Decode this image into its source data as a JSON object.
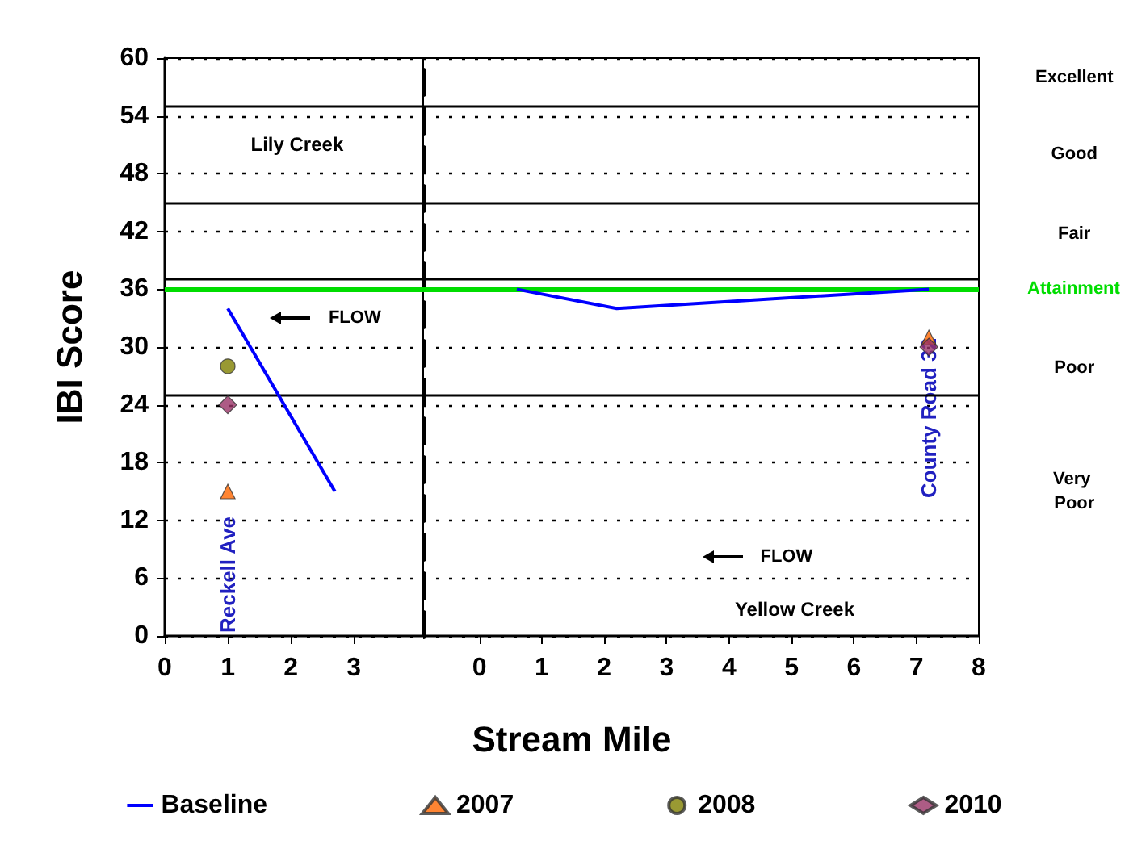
{
  "chart_data": [
    {
      "type": "line",
      "ylabel": "IBI Score",
      "xlabel": "Stream Mile",
      "xlim": [
        0,
        4.1
      ],
      "xticks": [
        0,
        1,
        2,
        3
      ],
      "ylim": [
        0,
        60
      ],
      "yticks": [
        0,
        6,
        12,
        18,
        24,
        30,
        36,
        42,
        48,
        54,
        60
      ],
      "grid": "y",
      "legend": "bottom",
      "annotations": [
        "Lily Creek",
        "FLOW",
        "Reckell Ave"
      ],
      "ref_lines": [
        {
          "axis": "y",
          "value": 55,
          "color": "#000000"
        },
        {
          "axis": "y",
          "value": 45,
          "color": "#000000"
        },
        {
          "axis": "y",
          "value": 37,
          "color": "#000000"
        },
        {
          "axis": "y",
          "value": 25,
          "color": "#000000"
        },
        {
          "axis": "y",
          "value": 36,
          "color": "#00dd00"
        }
      ],
      "series": [
        {
          "name": "Baseline",
          "color": "#0000ff",
          "x": [
            1,
            2.7
          ],
          "values": [
            34,
            15
          ],
          "marker": "none",
          "line_style": "solid"
        },
        {
          "name": "2007",
          "type": "scatter",
          "color": "#ff6600",
          "x": [
            1
          ],
          "values": [
            15
          ],
          "marker": "triangle"
        },
        {
          "name": "2008",
          "type": "scatter",
          "color": "#808000",
          "x": [
            1
          ],
          "values": [
            28
          ],
          "marker": "circle"
        },
        {
          "name": "2010",
          "type": "scatter",
          "color": "#993366",
          "x": [
            1
          ],
          "values": [
            24
          ],
          "marker": "diamond"
        }
      ]
    },
    {
      "type": "line",
      "tick_labels": "x",
      "xlim": [
        -0.9,
        8
      ],
      "xticks": [
        0,
        1,
        2,
        3,
        4,
        5,
        6,
        7,
        8
      ],
      "ylim": [
        0,
        60
      ],
      "yticks": [
        0,
        6,
        12,
        18,
        24,
        30,
        36,
        42,
        48,
        54,
        60
      ],
      "grid": "y",
      "annotations": [
        "FLOW",
        "Yellow Creek",
        "County Road 32",
        "Excellent",
        "Good",
        "Fair",
        "Poor",
        "Very Poor"
      ],
      "ref_lines": [
        {
          "axis": "y",
          "value": 55,
          "color": "#000000"
        },
        {
          "axis": "y",
          "value": 45,
          "color": "#000000"
        },
        {
          "axis": "y",
          "value": 37,
          "color": "#000000"
        },
        {
          "axis": "y",
          "value": 25,
          "color": "#000000"
        },
        {
          "axis": "y",
          "value": 36,
          "color": "#00dd00",
          "label": "Attainment"
        }
      ],
      "series": [
        {
          "color": "#0000ff",
          "x": [
            0.6,
            2.2,
            7.2
          ],
          "values": [
            36,
            34,
            36
          ],
          "marker": "none",
          "line_style": "solid"
        },
        {
          "type": "scatter",
          "color": "#ff6600",
          "x": [
            7.2
          ],
          "values": [
            31
          ],
          "marker": "triangle"
        },
        {
          "type": "scatter",
          "color": "#993366",
          "x": [
            7.2
          ],
          "values": [
            30
          ],
          "marker": "diamond"
        }
      ]
    }
  ]
}
